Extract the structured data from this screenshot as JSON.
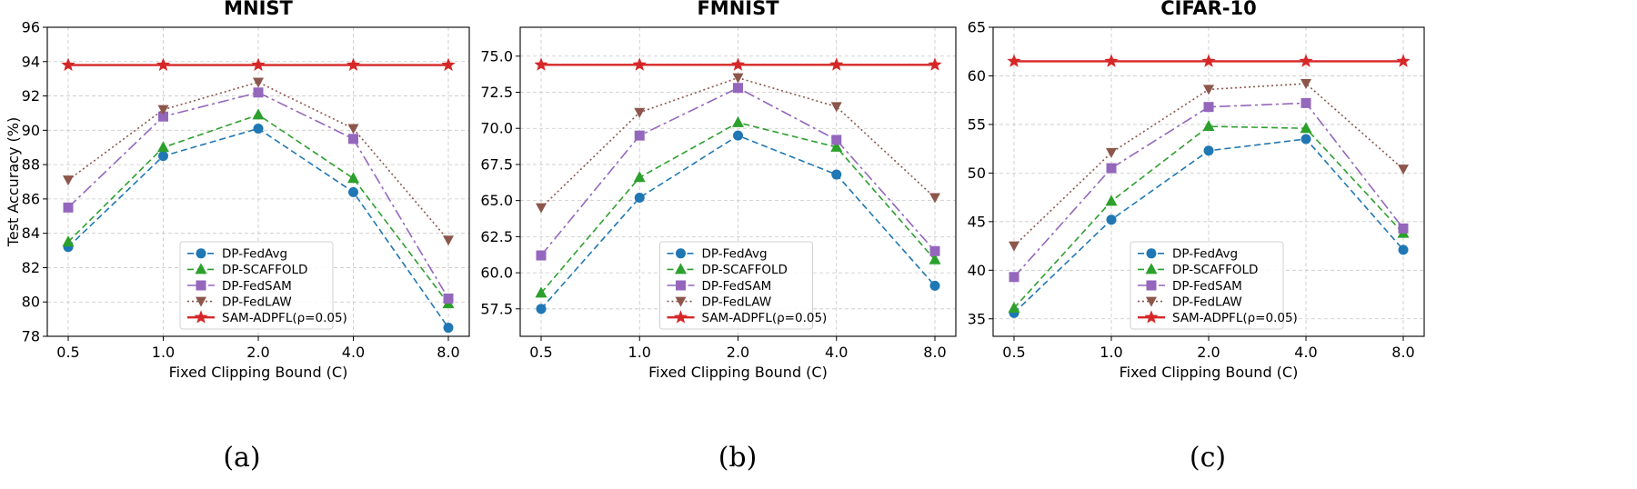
{
  "figure": {
    "captions": [
      "(a)",
      "(b)",
      "(c)"
    ]
  },
  "chart_data": [
    {
      "type": "line",
      "title": "MNIST",
      "xlabel": "Fixed Clipping Bound (C)",
      "ylabel": "Test Accuracy (%)",
      "categories": [
        "0.5",
        "1.0",
        "2.0",
        "4.0",
        "8.0"
      ],
      "ylim": [
        78,
        96
      ],
      "yticks": [
        "78",
        "80",
        "82",
        "84",
        "86",
        "88",
        "90",
        "92",
        "94",
        "96"
      ],
      "grid": true,
      "legend_position": "bottom-center",
      "series": [
        {
          "name": "DP-FedAvg",
          "values": [
            83.2,
            88.5,
            90.1,
            86.4,
            78.5
          ],
          "color": "#1f77b4",
          "marker": "circle",
          "dash": "7,4"
        },
        {
          "name": "DP-SCAFFOLD",
          "values": [
            83.5,
            89.0,
            90.9,
            87.2,
            79.9
          ],
          "color": "#2ca02c",
          "marker": "triangle-up",
          "dash": "7,4"
        },
        {
          "name": "DP-FedSAM",
          "values": [
            85.5,
            90.8,
            92.2,
            89.5,
            80.2
          ],
          "color": "#9467bd",
          "marker": "square",
          "dash": "12,4,3,4"
        },
        {
          "name": "DP-FedLAW",
          "values": [
            87.1,
            91.2,
            92.8,
            90.1,
            83.6
          ],
          "color": "#8c564b",
          "marker": "triangle-down",
          "dash": "2,3"
        },
        {
          "name": "SAM-ADPFL(ρ=0.05)",
          "values": [
            93.8,
            93.8,
            93.8,
            93.8,
            93.8
          ],
          "color": "#d62728",
          "marker": "star",
          "dash": ""
        }
      ]
    },
    {
      "type": "line",
      "title": "FMNIST",
      "xlabel": "Fixed Clipping Bound (C)",
      "ylabel": "",
      "categories": [
        "0.5",
        "1.0",
        "2.0",
        "4.0",
        "8.0"
      ],
      "ylim": [
        55.6,
        77.0
      ],
      "yticks": [
        "57.5",
        "60.0",
        "62.5",
        "65.0",
        "67.5",
        "70.0",
        "72.5",
        "75.0"
      ],
      "grid": true,
      "legend_position": "bottom-center",
      "series": [
        {
          "name": "DP-FedAvg",
          "values": [
            57.5,
            65.2,
            69.5,
            66.8,
            59.1
          ],
          "color": "#1f77b4",
          "marker": "circle",
          "dash": "7,4"
        },
        {
          "name": "DP-SCAFFOLD",
          "values": [
            58.6,
            66.6,
            70.4,
            68.7,
            60.9
          ],
          "color": "#2ca02c",
          "marker": "triangle-up",
          "dash": "7,4"
        },
        {
          "name": "DP-FedSAM",
          "values": [
            61.2,
            69.5,
            72.8,
            69.2,
            61.5
          ],
          "color": "#9467bd",
          "marker": "square",
          "dash": "12,4,3,4"
        },
        {
          "name": "DP-FedLAW",
          "values": [
            64.5,
            71.1,
            73.5,
            71.5,
            65.2
          ],
          "color": "#8c564b",
          "marker": "triangle-down",
          "dash": "2,3"
        },
        {
          "name": "SAM-ADPFL(ρ=0.05)",
          "values": [
            74.4,
            74.4,
            74.4,
            74.4,
            74.4
          ],
          "color": "#d62728",
          "marker": "star",
          "dash": ""
        }
      ]
    },
    {
      "type": "line",
      "title": "CIFAR-10",
      "xlabel": "Fixed Clipping Bound (C)",
      "ylabel": "",
      "categories": [
        "0.5",
        "1.0",
        "2.0",
        "4.0",
        "8.0"
      ],
      "ylim": [
        33.2,
        65.0
      ],
      "yticks": [
        "35",
        "40",
        "45",
        "50",
        "55",
        "60",
        "65"
      ],
      "grid": true,
      "legend_position": "bottom-center",
      "series": [
        {
          "name": "DP-FedAvg",
          "values": [
            35.6,
            45.2,
            52.3,
            53.5,
            42.1
          ],
          "color": "#1f77b4",
          "marker": "circle",
          "dash": "7,4"
        },
        {
          "name": "DP-SCAFFOLD",
          "values": [
            36.1,
            47.1,
            54.8,
            54.6,
            43.8
          ],
          "color": "#2ca02c",
          "marker": "triangle-up",
          "dash": "7,4"
        },
        {
          "name": "DP-FedSAM",
          "values": [
            39.3,
            50.5,
            56.8,
            57.2,
            44.3
          ],
          "color": "#9467bd",
          "marker": "square",
          "dash": "12,4,3,4"
        },
        {
          "name": "DP-FedLAW",
          "values": [
            42.5,
            52.1,
            58.6,
            59.2,
            50.4
          ],
          "color": "#8c564b",
          "marker": "triangle-down",
          "dash": "2,3"
        },
        {
          "name": "SAM-ADPFL(ρ=0.05)",
          "values": [
            61.5,
            61.5,
            61.5,
            61.5,
            61.5
          ],
          "color": "#d62728",
          "marker": "star",
          "dash": ""
        }
      ]
    }
  ]
}
